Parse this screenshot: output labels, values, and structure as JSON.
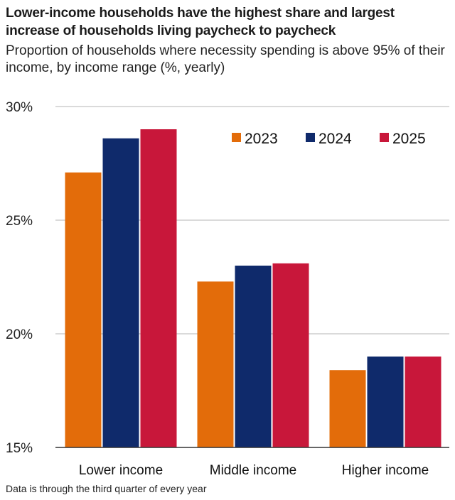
{
  "chart_data": {
    "type": "bar",
    "title": "Lower-income households have the highest share and largest increase of households living paycheck to paycheck",
    "subtitle": "Proportion of households where necessity spending is above 95% of their income, by income range (%, yearly)",
    "categories": [
      "Lower income",
      "Middle income",
      "Higher income"
    ],
    "series": [
      {
        "name": "2023",
        "color": "#e36c0a",
        "values": [
          27.1,
          22.3,
          18.4
        ]
      },
      {
        "name": "2024",
        "color": "#0f2a6b",
        "values": [
          28.6,
          23.0,
          19.0
        ]
      },
      {
        "name": "2025",
        "color": "#c8173a",
        "values": [
          29.0,
          23.1,
          19.0
        ]
      }
    ],
    "yticks": [
      "30%",
      "25%",
      "20%",
      "15%"
    ],
    "ytick_values": [
      30,
      25,
      20,
      15
    ],
    "ylim": [
      15,
      30
    ],
    "legend_position": "top-right",
    "footnote": "Data is through the third quarter of every year"
  }
}
